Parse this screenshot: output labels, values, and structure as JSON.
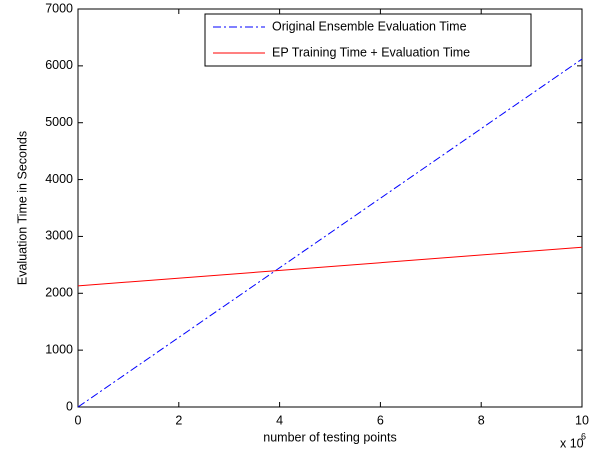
{
  "chart_data": {
    "type": "line",
    "x_label": "number of testing points",
    "y_label": "Evaluation Time in Seconds",
    "x_multiplier_base": "x 10",
    "x_multiplier_exponent": "6",
    "x": [
      0,
      10
    ],
    "series": [
      {
        "name": "Original Ensemble Evaluation Time",
        "color": "#0000ff",
        "linestyle": "dashdot",
        "values": [
          0,
          6120
        ]
      },
      {
        "name": "EP Training Time + Evaluation Time",
        "color": "#ff0000",
        "linestyle": "solid",
        "values": [
          2130,
          2810
        ]
      }
    ],
    "xlim": [
      0,
      10
    ],
    "xticks": [
      0,
      2,
      4,
      6,
      8,
      10
    ],
    "ylim": [
      0,
      7000
    ],
    "yticks": [
      0,
      1000,
      2000,
      3000,
      4000,
      5000,
      6000,
      7000
    ],
    "grid": false,
    "legend_position": "upper right"
  }
}
